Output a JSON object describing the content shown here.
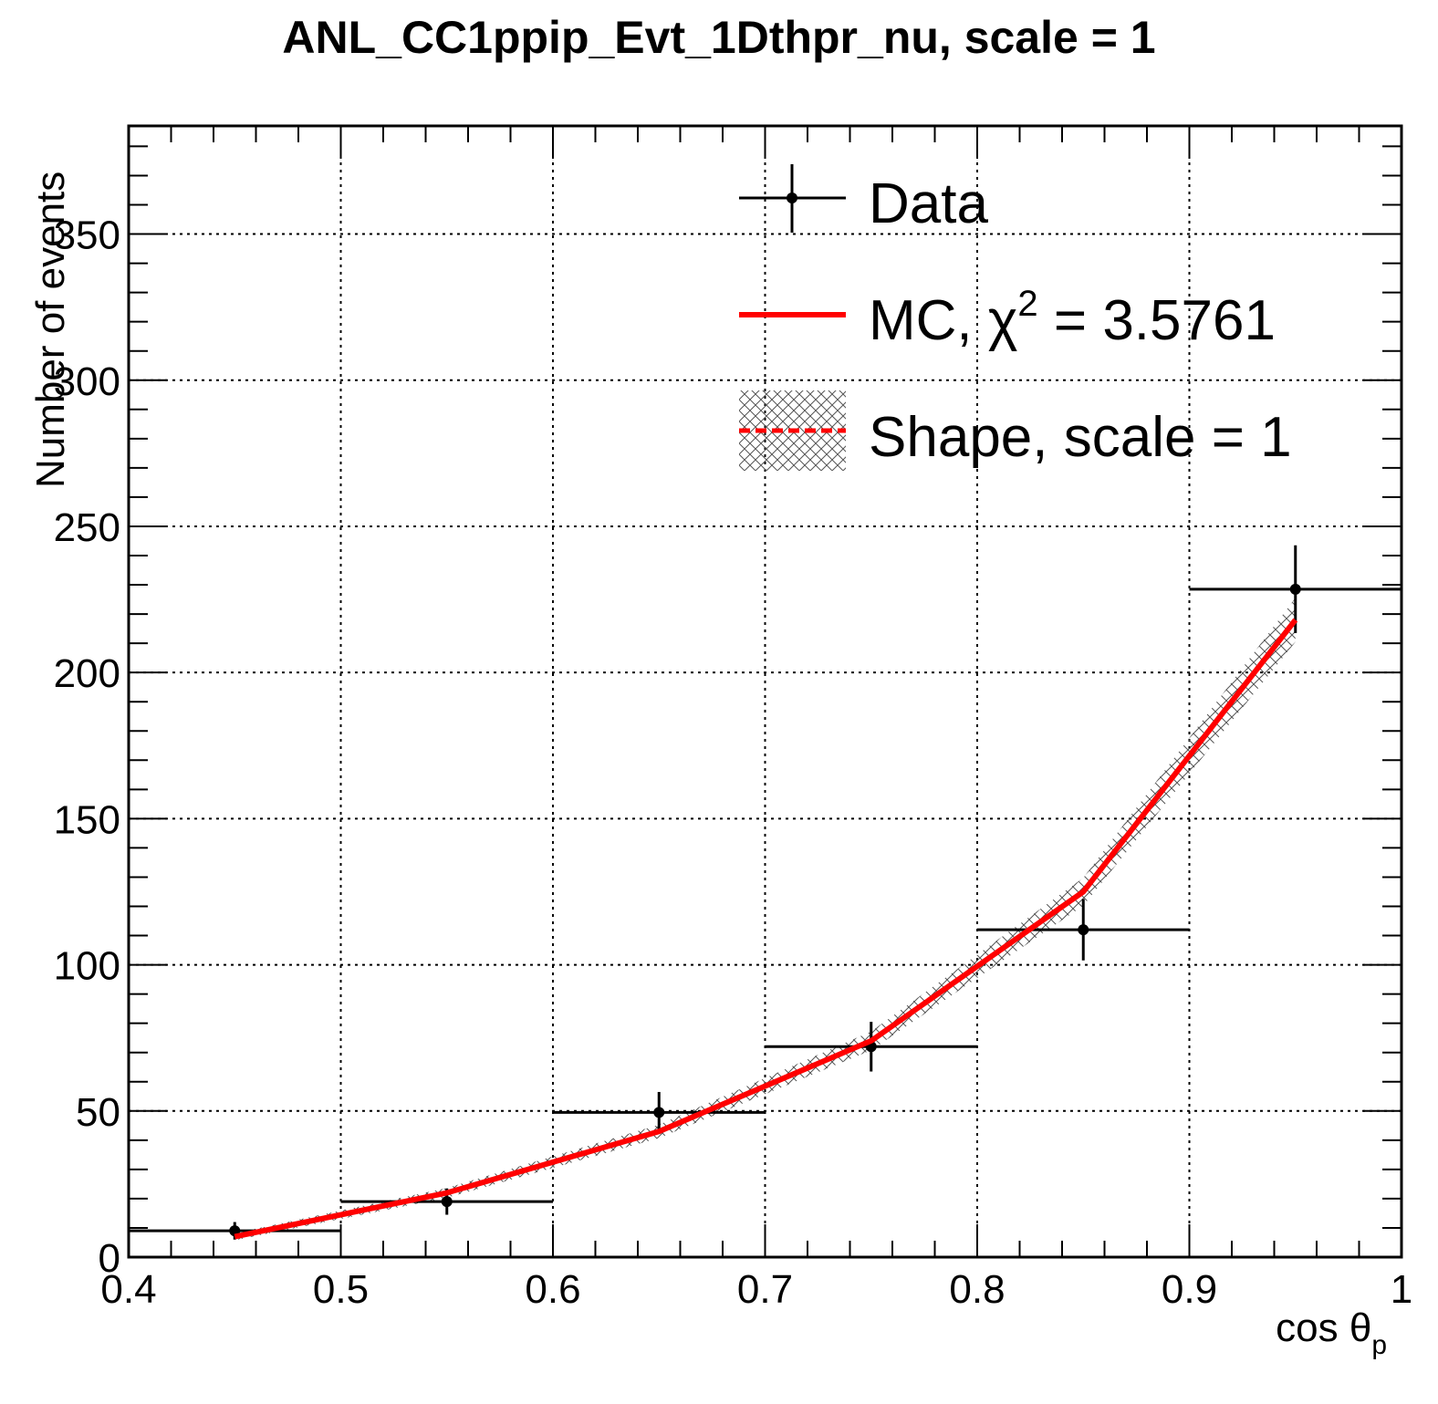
{
  "chart_data": {
    "type": "line",
    "title": "ANL_CC1ppip_Evt_1Dthpr_nu, scale = 1",
    "xlabel": "cos θ",
    "xlabel_subscript": "p",
    "ylabel": "Number of events",
    "xlim": [
      0.4,
      1.0
    ],
    "ylim": [
      0,
      387
    ],
    "x_ticks": [
      0.4,
      0.5,
      0.6,
      0.7,
      0.8,
      0.9,
      1.0
    ],
    "x_tick_labels": [
      "0.4",
      "0.5",
      "0.6",
      "0.7",
      "0.8",
      "0.9",
      "1"
    ],
    "y_ticks": [
      0,
      50,
      100,
      150,
      200,
      250,
      300,
      350
    ],
    "y_tick_labels": [
      "0",
      "50",
      "100",
      "150",
      "200",
      "250",
      "300",
      "350"
    ],
    "grid": true,
    "legend_position": "top-right",
    "legend": [
      {
        "label": "Data"
      },
      {
        "label_prefix": "MC, ",
        "chi": "χ",
        "sup": "2",
        "label_suffix": " = 3.5761"
      },
      {
        "label": "Shape, scale = 1"
      }
    ],
    "data": {
      "x_low": [
        0.4,
        0.5,
        0.6,
        0.7,
        0.8,
        0.9
      ],
      "x_high": [
        0.5,
        0.6,
        0.7,
        0.8,
        0.9,
        1.0
      ],
      "x": [
        0.45,
        0.55,
        0.65,
        0.75,
        0.85,
        0.95
      ],
      "y": [
        9,
        19,
        49.5,
        72,
        112,
        228.5
      ],
      "y_err": [
        3,
        4.5,
        7,
        8.5,
        10.5,
        15
      ]
    },
    "mc": {
      "x": [
        0.45,
        0.55,
        0.65,
        0.75,
        0.85,
        0.95
      ],
      "y": [
        7,
        22,
        43,
        74,
        125,
        218
      ]
    },
    "shape": {
      "x": [
        0.45,
        0.55,
        0.65,
        0.75,
        0.85,
        0.95
      ],
      "y": [
        7,
        22,
        43,
        74,
        125,
        218
      ]
    },
    "colors": {
      "data": "#000000",
      "mc": "#ff0000",
      "shape": "#ff0000",
      "grid": "#000000"
    }
  }
}
